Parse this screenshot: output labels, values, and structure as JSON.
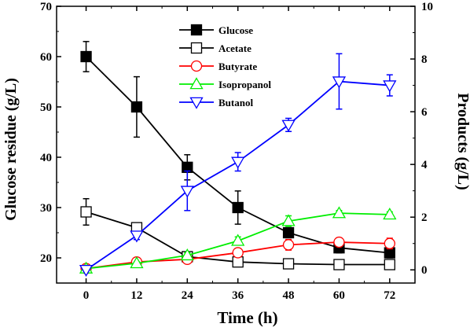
{
  "chart_data": {
    "type": "line",
    "xlabel": "Time (h)",
    "ylabel_left": "Glucose residue (g/L)",
    "ylabel_right": "Products (g/L)",
    "x": [
      0,
      12,
      24,
      36,
      48,
      60,
      72
    ],
    "x_ticks": [
      "0",
      "12",
      "24",
      "36",
      "48",
      "60",
      "72"
    ],
    "xlim": [
      -7,
      78
    ],
    "ylim_left": [
      15,
      70
    ],
    "ylim_right": [
      -0.5,
      10
    ],
    "y_ticks_left": [
      "20",
      "30",
      "40",
      "50",
      "60",
      "70"
    ],
    "y_ticks_right": [
      "0",
      "2",
      "4",
      "6",
      "8",
      "10"
    ],
    "legend_position": "top-center",
    "grid": false,
    "series": [
      {
        "name": "Glucose",
        "axis": "left",
        "color": "#000000",
        "marker": "square-filled",
        "values": [
          60,
          50,
          38,
          30,
          25,
          22,
          21
        ],
        "errors": [
          3.0,
          6.0,
          2.5,
          3.3,
          1.0,
          1.0,
          1.0
        ]
      },
      {
        "name": "Acetate",
        "axis": "right",
        "color": "#000000",
        "marker": "square-open",
        "values": [
          2.2,
          1.6,
          0.5,
          0.3,
          0.23,
          0.2,
          0.2
        ],
        "errors": [
          0.5,
          0.15,
          0.1,
          0.1,
          0.05,
          0.05,
          0.05
        ]
      },
      {
        "name": "Butyrate",
        "axis": "right",
        "color": "#ff0000",
        "marker": "circle-open",
        "values": [
          0.05,
          0.3,
          0.4,
          0.65,
          0.95,
          1.05,
          1.0
        ],
        "errors": [
          0.05,
          0.05,
          0.05,
          0.15,
          0.2,
          0.15,
          0.2
        ]
      },
      {
        "name": "Isopropanol",
        "axis": "right",
        "color": "#00ee00",
        "marker": "triangle-up-open",
        "values": [
          0.05,
          0.25,
          0.55,
          1.1,
          1.85,
          2.15,
          2.1
        ],
        "errors": [
          0.05,
          0.05,
          0.1,
          0.15,
          0.2,
          0.1,
          0.1
        ]
      },
      {
        "name": "Butanol",
        "axis": "right",
        "color": "#0000ff",
        "marker": "triangle-down-open",
        "values": [
          0.0,
          1.3,
          3.0,
          4.1,
          5.5,
          7.15,
          7.0
        ],
        "errors": [
          0.05,
          0.15,
          0.75,
          0.35,
          0.25,
          1.05,
          0.4
        ]
      }
    ]
  }
}
